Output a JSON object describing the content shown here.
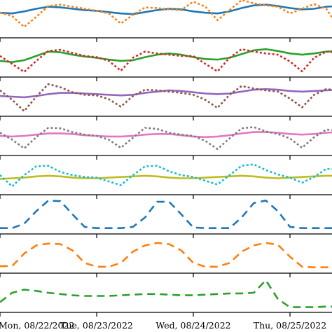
{
  "chart_data": [
    {
      "type": "line",
      "panel": 1,
      "x": [
        "Mon, 08/22/2022 00:00",
        "Mon, 08/22/2022 03:00",
        "Mon, 08/22/2022 06:00",
        "Mon, 08/22/2022 09:00",
        "Mon, 08/22/2022 12:00",
        "Mon, 08/22/2022 15:00",
        "Mon, 08/22/2022 18:00",
        "Mon, 08/22/2022 21:00",
        "Tue, 08/23/2022 00:00",
        "Tue, 08/23/2022 03:00",
        "Tue, 08/23/2022 06:00",
        "Tue, 08/23/2022 09:00",
        "Tue, 08/23/2022 12:00",
        "Tue, 08/23/2022 15:00",
        "Tue, 08/23/2022 18:00",
        "Tue, 08/23/2022 21:00",
        "Wed, 08/24/2022 00:00",
        "Wed, 08/24/2022 03:00",
        "Wed, 08/24/2022 06:00",
        "Wed, 08/24/2022 09:00",
        "Wed, 08/24/2022 12:00",
        "Wed, 08/24/2022 15:00",
        "Wed, 08/24/2022 18:00",
        "Wed, 08/24/2022 21:00",
        "Thu, 08/25/2022 00:00",
        "Thu, 08/25/2022 03:00",
        "Thu, 08/25/2022 06:00",
        "Thu, 08/25/2022 09:00",
        "Thu, 08/25/2022 12:00"
      ],
      "series": [
        {
          "style": "solid",
          "color": "#1f77b4",
          "values": [
            0.62,
            0.6,
            0.66,
            0.74,
            0.8,
            0.78,
            0.74,
            0.7,
            0.68,
            0.64,
            0.6,
            0.58,
            0.64,
            0.7,
            0.74,
            0.72,
            0.66,
            0.62,
            0.6,
            0.66,
            0.76,
            0.84,
            0.86,
            0.82,
            0.76,
            0.72,
            0.74,
            0.8,
            0.82
          ]
        },
        {
          "style": "dotted",
          "color": "#ff7f0e",
          "values": [
            0.62,
            0.52,
            0.2,
            0.5,
            0.82,
            0.86,
            0.8,
            0.74,
            0.68,
            0.6,
            0.3,
            0.56,
            0.78,
            0.76,
            0.72,
            0.7,
            0.95,
            0.8,
            0.4,
            0.7,
            1.0,
            0.9,
            0.84,
            0.8,
            0.6,
            0.74,
            0.88,
            0.74,
            0.2
          ]
        }
      ]
    },
    {
      "type": "line",
      "panel": 2,
      "series": [
        {
          "style": "solid",
          "color": "#2ca02c",
          "values": [
            0.4,
            0.36,
            0.42,
            0.56,
            0.7,
            0.68,
            0.6,
            0.54,
            0.5,
            0.44,
            0.4,
            0.42,
            0.52,
            0.6,
            0.64,
            0.6,
            0.52,
            0.46,
            0.44,
            0.5,
            0.62,
            0.74,
            0.78,
            0.72,
            0.64,
            0.6,
            0.64,
            0.7,
            0.72
          ]
        },
        {
          "style": "dotted",
          "color": "#d62728",
          "values": [
            0.56,
            0.3,
            0.04,
            0.4,
            0.72,
            0.76,
            0.66,
            0.56,
            0.52,
            0.4,
            0.08,
            0.5,
            0.7,
            0.64,
            0.6,
            0.56,
            0.56,
            0.3,
            0.06,
            0.5,
            0.78,
            0.7,
            0.64,
            0.6,
            0.38,
            0.06,
            0.5,
            0.7,
            0.66
          ]
        }
      ]
    },
    {
      "type": "line",
      "panel": 3,
      "series": [
        {
          "style": "solid",
          "color": "#9467bd",
          "values": [
            0.52,
            0.5,
            0.48,
            0.52,
            0.58,
            0.62,
            0.62,
            0.6,
            0.58,
            0.56,
            0.54,
            0.56,
            0.62,
            0.66,
            0.7,
            0.68,
            0.64,
            0.6,
            0.58,
            0.6,
            0.66,
            0.72,
            0.74,
            0.72,
            0.68,
            0.66,
            0.68,
            0.7,
            0.72
          ]
        },
        {
          "style": "dotted",
          "color": "#8c564b",
          "values": [
            0.7,
            0.4,
            0.04,
            0.5,
            0.9,
            0.8,
            0.64,
            0.56,
            0.54,
            0.42,
            0.18,
            0.52,
            0.72,
            0.7,
            0.66,
            0.62,
            0.56,
            0.4,
            0.14,
            0.56,
            0.84,
            0.76,
            0.7,
            0.66,
            0.44,
            0.16,
            0.56,
            0.74,
            0.7
          ]
        }
      ]
    },
    {
      "type": "line",
      "panel": 4,
      "series": [
        {
          "style": "solid",
          "color": "#e377c2",
          "values": [
            0.5,
            0.48,
            0.5,
            0.54,
            0.58,
            0.58,
            0.56,
            0.52,
            0.5,
            0.48,
            0.48,
            0.5,
            0.54,
            0.56,
            0.56,
            0.52,
            0.48,
            0.46,
            0.48,
            0.52,
            0.58,
            0.62,
            0.62,
            0.6,
            0.56,
            0.54,
            0.56,
            0.6,
            0.62
          ]
        },
        {
          "style": "dotted",
          "color": "#7f7f7f",
          "values": [
            0.6,
            0.38,
            0.1,
            0.46,
            0.76,
            0.74,
            0.62,
            0.54,
            0.5,
            0.38,
            0.12,
            0.44,
            0.76,
            0.72,
            0.6,
            0.54,
            0.5,
            0.34,
            0.08,
            0.42,
            0.74,
            0.78,
            0.64,
            0.56,
            0.42,
            0.12,
            0.46,
            0.7,
            0.66
          ]
        }
      ]
    },
    {
      "type": "line",
      "panel": 5,
      "series": [
        {
          "style": "solid",
          "color": "#bcbd22",
          "values": [
            0.38,
            0.4,
            0.42,
            0.46,
            0.48,
            0.46,
            0.42,
            0.4,
            0.4,
            0.42,
            0.44,
            0.46,
            0.48,
            0.46,
            0.42,
            0.4,
            0.4,
            0.42,
            0.44,
            0.46,
            0.48,
            0.46,
            0.42,
            0.4,
            0.42,
            0.44,
            0.46,
            0.48,
            0.48
          ]
        },
        {
          "style": "dotted",
          "color": "#17becf",
          "values": [
            0.5,
            0.14,
            0.5,
            0.78,
            0.8,
            0.6,
            0.5,
            0.44,
            0.42,
            0.3,
            0.18,
            0.5,
            0.78,
            0.8,
            0.62,
            0.5,
            0.44,
            0.32,
            0.2,
            0.5,
            0.8,
            0.84,
            0.66,
            0.52,
            0.42,
            0.26,
            0.44,
            0.7,
            0.68
          ]
        }
      ]
    },
    {
      "type": "line",
      "panel": 6,
      "series": [
        {
          "style": "dashed",
          "color": "#1f77b4",
          "values": [
            0.06,
            0.06,
            0.2,
            0.6,
            0.94,
            0.92,
            0.5,
            0.1,
            0.06,
            0.06,
            0.06,
            0.1,
            0.4,
            0.9,
            0.9,
            0.5,
            0.08,
            0.06,
            0.06,
            0.06,
            0.4,
            0.86,
            0.94,
            0.6,
            0.1,
            0.06,
            0.06,
            0.06,
            0.06
          ]
        }
      ]
    },
    {
      "type": "line",
      "panel": 7,
      "series": [
        {
          "style": "dashed",
          "color": "#ff7f0e",
          "values": [
            0.1,
            0.1,
            0.5,
            0.76,
            0.82,
            0.8,
            0.6,
            0.2,
            0.08,
            0.08,
            0.2,
            0.56,
            0.76,
            0.84,
            0.8,
            0.6,
            0.2,
            0.08,
            0.08,
            0.2,
            0.56,
            0.76,
            0.84,
            0.78,
            0.4,
            0.08,
            0.06,
            0.06,
            0.08
          ]
        }
      ]
    },
    {
      "type": "line",
      "panel": 8,
      "series": [
        {
          "style": "dashed",
          "color": "#2ca02c",
          "values": [
            0.2,
            0.5,
            0.6,
            0.56,
            0.5,
            0.46,
            0.42,
            0.4,
            0.4,
            0.4,
            0.42,
            0.44,
            0.46,
            0.46,
            0.44,
            0.42,
            0.42,
            0.44,
            0.46,
            0.48,
            0.48,
            0.5,
            0.9,
            0.3,
            0.04,
            0.04,
            0.04,
            0.06,
            0.06
          ]
        }
      ]
    }
  ],
  "x_axis": {
    "tick_labels": [
      "Mon, 08/22/2022",
      "Tue, 08/23/2022",
      "Wed, 08/24/2022",
      "Thu, 08/25/2022"
    ]
  }
}
